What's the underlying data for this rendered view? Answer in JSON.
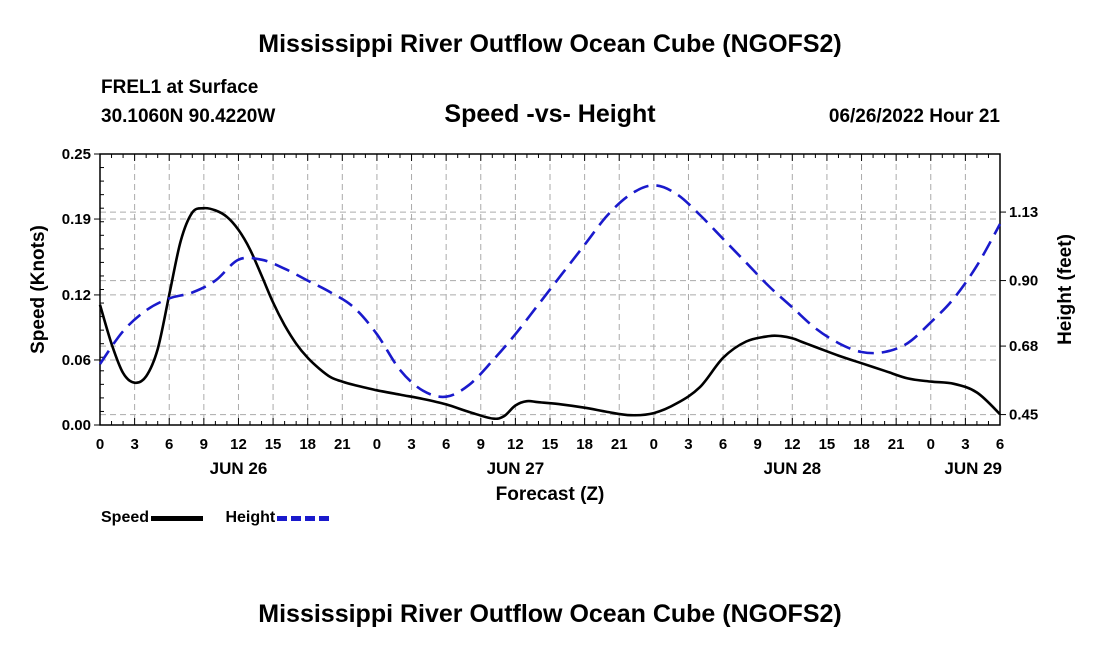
{
  "title": "Mississippi River Outflow Ocean Cube (NGOFS2)",
  "bottom_title": "Mississippi River Outflow Ocean Cube (NGOFS2)",
  "station": {
    "name": "FREL1 at Surface",
    "coords": "30.1060N  90.4220W"
  },
  "datetime": "06/26/2022 Hour 21",
  "legend": {
    "speed_label": "Speed",
    "height_label": "Height"
  },
  "colors": {
    "speed": "#000000",
    "height": "#1a1acc",
    "grid": "#aaaaaa"
  },
  "chart_data": {
    "type": "line",
    "title": "Speed -vs- Height",
    "xlabel": "Forecast (Z)",
    "ylabel_left": "Speed (Knots)",
    "ylabel_right": "Height (feet)",
    "x_unit": "hours since 2022-06-26 00Z",
    "xlim": [
      0,
      78
    ],
    "ylim_left": [
      0,
      0.25
    ],
    "ylim_right": [
      0.415,
      1.325
    ],
    "left_ticks": [
      0.0,
      0.06,
      0.12,
      0.19,
      0.25
    ],
    "left_tick_labels": [
      "0.00",
      "0.06",
      "0.12",
      "0.19",
      "0.25"
    ],
    "right_ticks": [
      0.45,
      0.68,
      0.9,
      1.13
    ],
    "right_tick_labels": [
      "0.45",
      "0.68",
      "0.90",
      "1.13"
    ],
    "x_ticks": [
      0,
      3,
      6,
      9,
      12,
      15,
      18,
      21,
      24,
      27,
      30,
      33,
      36,
      39,
      42,
      45,
      48,
      51,
      54,
      57,
      60,
      63,
      66,
      69,
      72,
      75,
      78
    ],
    "x_tick_labels": [
      "0",
      "3",
      "6",
      "9",
      "12",
      "15",
      "18",
      "21",
      "0",
      "3",
      "6",
      "9",
      "12",
      "15",
      "18",
      "21",
      "0",
      "3",
      "6",
      "9",
      "12",
      "15",
      "18",
      "21",
      "0",
      "3",
      "6"
    ],
    "date_labels": [
      {
        "x": 12,
        "label": "JUN 26"
      },
      {
        "x": 36,
        "label": "JUN 27"
      },
      {
        "x": 60,
        "label": "JUN 28"
      },
      {
        "x": 78,
        "label": "JUN 29"
      }
    ],
    "series": [
      {
        "name": "Speed",
        "axis": "left",
        "style": "solid",
        "x": [
          0,
          1,
          2,
          3,
          4,
          5,
          6,
          7,
          8,
          9,
          10,
          11,
          12,
          13,
          14,
          15,
          16,
          17,
          18,
          19,
          20,
          21,
          22,
          24,
          26,
          28,
          30,
          32,
          34,
          35,
          36,
          37,
          38,
          40,
          42,
          44,
          46,
          48,
          50,
          52,
          54,
          56,
          58,
          59,
          60,
          61,
          62,
          64,
          66,
          68,
          70,
          72,
          74,
          76,
          78
        ],
        "values": [
          0.111,
          0.075,
          0.048,
          0.039,
          0.045,
          0.07,
          0.12,
          0.17,
          0.196,
          0.2,
          0.198,
          0.192,
          0.18,
          0.162,
          0.138,
          0.113,
          0.092,
          0.075,
          0.062,
          0.052,
          0.044,
          0.04,
          0.037,
          0.032,
          0.028,
          0.024,
          0.019,
          0.012,
          0.006,
          0.008,
          0.018,
          0.022,
          0.021,
          0.019,
          0.016,
          0.012,
          0.009,
          0.011,
          0.02,
          0.035,
          0.062,
          0.077,
          0.082,
          0.082,
          0.08,
          0.076,
          0.072,
          0.064,
          0.057,
          0.05,
          0.043,
          0.04,
          0.038,
          0.03,
          0.01
        ]
      },
      {
        "name": "Height",
        "axis": "right",
        "style": "dashed",
        "x": [
          0,
          2,
          4,
          6,
          8,
          10,
          12,
          14,
          16,
          18,
          20,
          22,
          24,
          26,
          28,
          30,
          32,
          34,
          36,
          38,
          40,
          42,
          44,
          46,
          48,
          50,
          52,
          54,
          56,
          58,
          60,
          62,
          64,
          66,
          68,
          70,
          72,
          74,
          76,
          78
        ],
        "values": [
          0.62,
          0.73,
          0.8,
          0.84,
          0.86,
          0.9,
          0.97,
          0.97,
          0.94,
          0.9,
          0.86,
          0.81,
          0.72,
          0.6,
          0.53,
          0.51,
          0.55,
          0.63,
          0.72,
          0.82,
          0.92,
          1.02,
          1.12,
          1.19,
          1.22,
          1.19,
          1.12,
          1.04,
          0.96,
          0.88,
          0.81,
          0.74,
          0.69,
          0.66,
          0.66,
          0.69,
          0.76,
          0.84,
          0.95,
          1.09
        ]
      }
    ]
  }
}
